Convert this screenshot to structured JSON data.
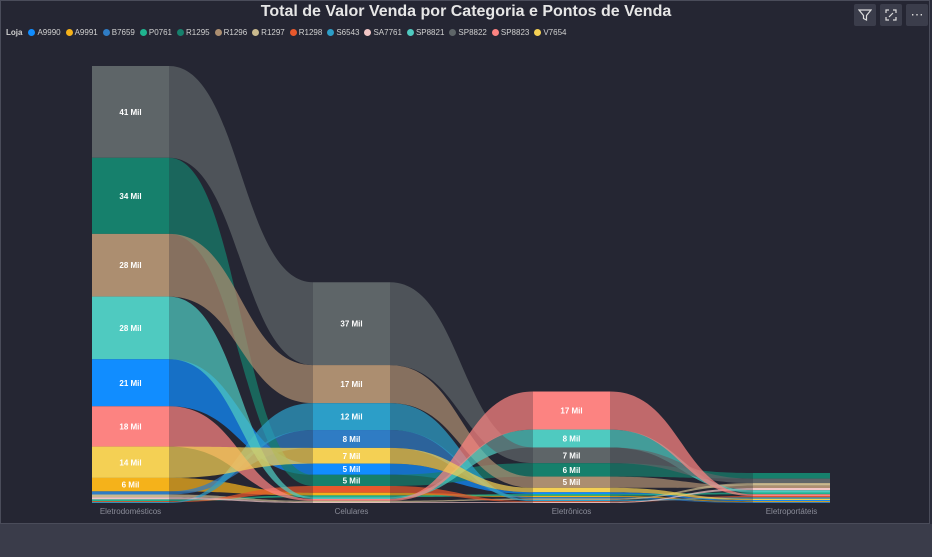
{
  "title": "Total de Valor Venda por Categoria e Pontos de Venda",
  "legend_title": "Loja",
  "toolbar": {
    "filter_icon": "filter-icon",
    "focus_icon": "focus-mode-icon",
    "more_label": "⋯"
  },
  "chart_data": {
    "type": "sankey-ribbon",
    "title": "Total de Valor Venda por Categoria e Pontos de Venda",
    "legend_title": "Loja",
    "legend_position": "top-left",
    "categories": [
      "Eletrodomésticos",
      "Celulares",
      "Eletrônicos",
      "Eletroportáteis"
    ],
    "series": [
      {
        "name": "A9990",
        "color": "#118DFF",
        "values": [
          21,
          5,
          0.8,
          0.5
        ]
      },
      {
        "name": "A9991",
        "color": "#F5B21A",
        "values": [
          6,
          1.2,
          0.6,
          0.4
        ]
      },
      {
        "name": "B7659",
        "color": "#2F7CC4",
        "values": [
          1.4,
          8,
          0.6,
          0.4
        ]
      },
      {
        "name": "P0761",
        "color": "#1FB48F",
        "values": [
          0.8,
          0.8,
          0.8,
          0.8
        ]
      },
      {
        "name": "R1295",
        "color": "#16806C",
        "values": [
          34,
          5,
          6,
          2.5
        ]
      },
      {
        "name": "R1296",
        "color": "#AC8E70",
        "values": [
          28,
          17,
          5,
          1
        ]
      },
      {
        "name": "R1297",
        "color": "#C9B98E",
        "values": [
          1.2,
          0.6,
          0.6,
          1.2
        ]
      },
      {
        "name": "R1298",
        "color": "#E8582C",
        "values": [
          0.4,
          3,
          0.4,
          0.6
        ]
      },
      {
        "name": "S6543",
        "color": "#2C9EC8",
        "values": [
          0.4,
          12,
          0.6,
          0.6
        ]
      },
      {
        "name": "SA7761",
        "color": "#F2C6C6",
        "values": [
          1,
          0.4,
          0.4,
          1
        ]
      },
      {
        "name": "SP8821",
        "color": "#4FCAC0",
        "values": [
          28,
          0.8,
          8,
          1
        ]
      },
      {
        "name": "SP8822",
        "color": "#5E6568",
        "values": [
          41,
          37,
          7,
          2
        ]
      },
      {
        "name": "SP8823",
        "color": "#FC8381",
        "values": [
          18,
          0.8,
          17,
          0.8
        ]
      },
      {
        "name": "V7654",
        "color": "#F4D054",
        "values": [
          14,
          7,
          2,
          0.6
        ]
      }
    ],
    "data_labels": [
      [
        "41 Mil",
        "34 Mil",
        "28 Mil",
        "28 Mil",
        "21 Mil",
        "18 Mil",
        "14 Mil",
        "6 Mil"
      ],
      [
        "37 Mil",
        "17 Mil",
        "12 Mil",
        "8 Mil",
        "7 Mil",
        "5 Mil",
        "5 Mil"
      ],
      [
        "17 Mil",
        "8 Mil",
        "7 Mil",
        "6 Mil",
        "5 Mil"
      ],
      []
    ],
    "ordering": "descending within each category, ribbons connect same series",
    "grid": false
  }
}
